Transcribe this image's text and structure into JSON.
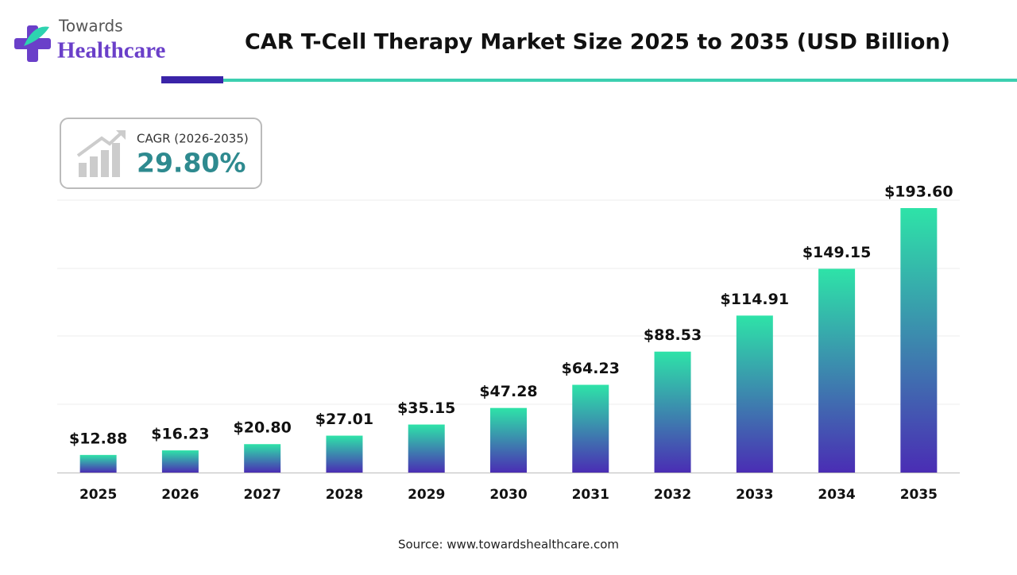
{
  "logo": {
    "top": "Towards",
    "bottom": "Healthcare"
  },
  "chart_data": {
    "type": "bar",
    "title": "CAR T-Cell Therapy Market Size 2025 to 2035 (USD Billion)",
    "cagr_label": "CAGR (2026-2035)",
    "cagr_value": "29.80%",
    "source": "Source: www.towardshealthcare.com",
    "categories": [
      "2025",
      "2026",
      "2027",
      "2028",
      "2029",
      "2030",
      "2031",
      "2032",
      "2033",
      "2034",
      "2035"
    ],
    "values": [
      12.88,
      16.23,
      20.8,
      27.01,
      35.15,
      47.28,
      64.23,
      88.53,
      114.91,
      149.15,
      193.6
    ],
    "value_labels": [
      "$12.88",
      "$16.23",
      "$20.80",
      "$27.01",
      "$35.15",
      "$47.28",
      "$64.23",
      "$88.53",
      "$114.91",
      "$149.15",
      "$193.60"
    ],
    "ylim": [
      0,
      200
    ],
    "colors": {
      "top": "#2ee3a8",
      "bottom": "#4a2db4"
    }
  }
}
